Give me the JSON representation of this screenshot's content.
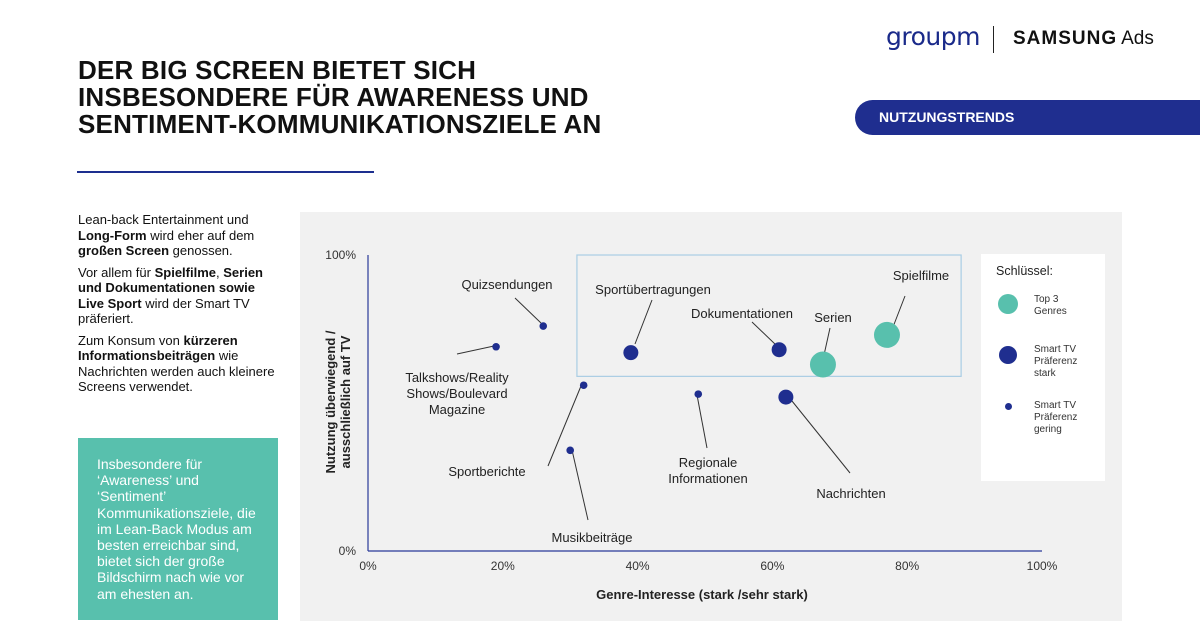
{
  "branding": {
    "groupm": "groupm",
    "samsung": "SAMSUNG",
    "ads": "Ads"
  },
  "headline": {
    "line1": "DER BIG SCREEN BIETET SICH",
    "line2": "INSBESONDERE FÜR AWARENESS UND",
    "line3": "SENTIMENT-KOMMUNIKATIONSZIELE AN"
  },
  "tag": "NUTZUNGSTRENDS",
  "side": {
    "p1_a": "Lean-back Entertainment und ",
    "p1_b": "Long-Form",
    "p1_c": " wird eher auf dem ",
    "p1_d": "großen Screen",
    "p1_e": " genossen.",
    "p2_a": "Vor allem für ",
    "p2_b": "Spielfilme",
    "p2_c": ", ",
    "p2_d": "Serien und Dokumentationen sowie Live Sport",
    "p2_e": " wird der Smart TV präferiert.",
    "p3_a": "Zum Konsum von ",
    "p3_b": "kürzeren Informationsbeiträgen",
    "p3_c": " wie Nachrichten werden auch kleinere Screens verwendet."
  },
  "callout": "Insbesondere für ‘Awareness’ und ‘Sentiment’ Kommunikationsziele, die im Lean-Back Modus am besten erreichbar sind, bietet sich der große Bildschirm nach wie vor am ehesten an.",
  "colors": {
    "navy": "#1f2e8f",
    "teal": "#58c0ad",
    "highlight_box": "#a9cde4"
  },
  "chart_data": {
    "type": "scatter",
    "xlabel": "Genre-Interesse (stark /sehr stark)",
    "ylabel_line1": "Nutzung überwiegend /",
    "ylabel_line2": "ausschließlich auf TV",
    "xlim": [
      0,
      100
    ],
    "ylim": [
      0,
      100
    ],
    "x_ticks": [
      "0%",
      "20%",
      "40%",
      "60%",
      "80%",
      "100%"
    ],
    "y_ticks": [
      "0%",
      "100%"
    ],
    "highlight_region": {
      "x": [
        31,
        88
      ],
      "y": [
        59,
        100
      ]
    },
    "points": [
      {
        "label": "Spielfilme",
        "x": 77,
        "y": 73,
        "group": "top3"
      },
      {
        "label": "Serien",
        "x": 67.5,
        "y": 63,
        "group": "top3"
      },
      {
        "label": "Dokumentationen",
        "x": 61,
        "y": 68,
        "group": "strong"
      },
      {
        "label": "Sportübertragungen",
        "x": 39,
        "y": 67,
        "group": "strong"
      },
      {
        "label": "Nachrichten",
        "x": 62,
        "y": 52,
        "group": "strong"
      },
      {
        "label": "Quizsendungen",
        "x": 26,
        "y": 76,
        "group": "weak"
      },
      {
        "label": "Talkshows/Reality Shows/Boulevard Magazine",
        "x": 19,
        "y": 69,
        "group": "weak"
      },
      {
        "label": "Sportberichte",
        "x": 32,
        "y": 56,
        "group": "weak"
      },
      {
        "label": "Regionale Informationen",
        "x": 49,
        "y": 53,
        "group": "weak"
      },
      {
        "label": "Musikbeiträge",
        "x": 30,
        "y": 34,
        "group": "weak"
      }
    ],
    "legend": {
      "title": "Schlüssel:",
      "items": [
        {
          "group": "top3",
          "label_l1": "Top 3",
          "label_l2": "Genres",
          "label_l3": ""
        },
        {
          "group": "strong",
          "label_l1": "Smart TV",
          "label_l2": "Präferenz",
          "label_l3": "stark"
        },
        {
          "group": "weak",
          "label_l1": "Smart TV",
          "label_l2": "Präferenz",
          "label_l3": "gering"
        }
      ]
    }
  }
}
